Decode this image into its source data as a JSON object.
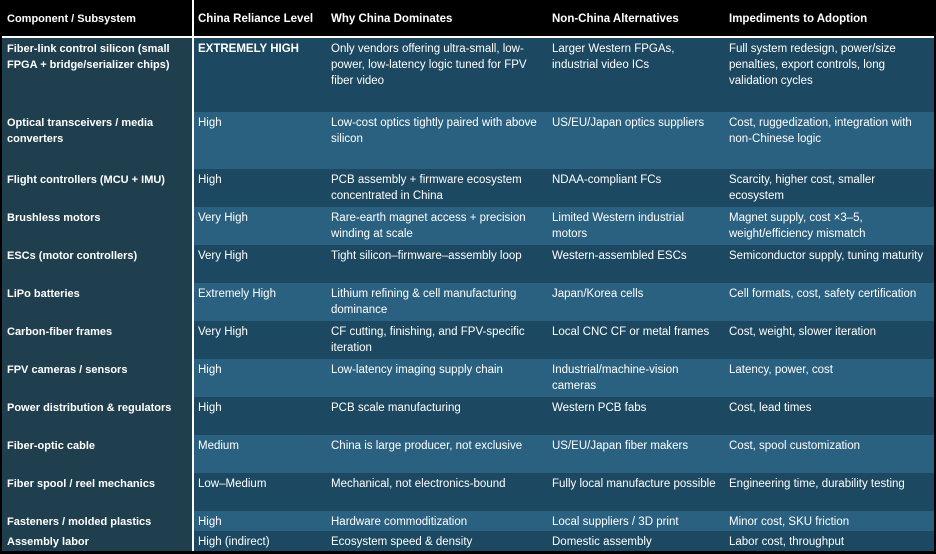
{
  "colors": {
    "header_bg": "#000000",
    "col1_bg": "#1f3f4f",
    "row_dark": "#1c4961",
    "row_light": "#2a6181",
    "divider": "#ffffff",
    "text": "#ffffff"
  },
  "table": {
    "headers": [
      "Component / Subsystem",
      "China Reliance Level",
      "Why China Dominates",
      "Non-China Alternatives",
      "Impediments to Adoption"
    ],
    "rows": [
      {
        "component": "Fiber-link control silicon (small FPGA + bridge/serializer chips)",
        "reliance": "EXTREMELY HIGH",
        "why": "Only vendors offering ultra-small, low-power, low-latency logic tuned for FPV fiber video",
        "alternatives": "Larger Western FPGAs, industrial video ICs",
        "impediments": "Full system redesign, power/size penalties, export controls, long validation cycles"
      },
      {
        "component": "Optical transceivers / media converters",
        "reliance": "High",
        "why": "Low-cost optics tightly paired with above silicon",
        "alternatives": "US/EU/Japan optics suppliers",
        "impediments": "Cost, ruggedization, integration with non-Chinese logic"
      },
      {
        "component": "Flight controllers (MCU + IMU)",
        "reliance": "High",
        "why": "PCB assembly + firmware ecosystem concentrated in China",
        "alternatives": "NDAA-compliant FCs",
        "impediments": "Scarcity, higher cost, smaller ecosystem"
      },
      {
        "component": "Brushless motors",
        "reliance": "Very High",
        "why": "Rare-earth magnet access + precision winding at scale",
        "alternatives": "Limited Western industrial motors",
        "impediments": "Magnet supply, cost ×3–5, weight/efficiency mismatch"
      },
      {
        "component": "ESCs (motor controllers)",
        "reliance": "Very High",
        "why": "Tight silicon–firmware–assembly loop",
        "alternatives": "Western-assembled ESCs",
        "impediments": "Semiconductor supply, tuning maturity"
      },
      {
        "component": "LiPo batteries",
        "reliance": "Extremely High",
        "why": "Lithium refining & cell manufacturing dominance",
        "alternatives": "Japan/Korea cells",
        "impediments": "Cell formats, cost, safety certification"
      },
      {
        "component": "Carbon-fiber frames",
        "reliance": "Very High",
        "why": "CF cutting, finishing, and FPV-specific iteration",
        "alternatives": "Local CNC CF or metal frames",
        "impediments": "Cost, weight, slower iteration"
      },
      {
        "component": "FPV cameras / sensors",
        "reliance": "High",
        "why": "Low-latency imaging supply chain",
        "alternatives": "Industrial/machine-vision cameras",
        "impediments": "Latency, power, cost"
      },
      {
        "component": "Power distribution & regulators",
        "reliance": "High",
        "why": "PCB scale manufacturing",
        "alternatives": "Western PCB fabs",
        "impediments": "Cost, lead times"
      },
      {
        "component": "Fiber-optic cable",
        "reliance": "Medium",
        "why": "China is large producer, not exclusive",
        "alternatives": "US/EU/Japan fiber makers",
        "impediments": "Cost, spool customization"
      },
      {
        "component": "Fiber spool / reel mechanics",
        "reliance": "Low–Medium",
        "why": "Mechanical, not electronics-bound",
        "alternatives": "Fully local manufacture possible",
        "impediments": "Engineering time, durability testing"
      },
      {
        "component": "Fasteners / molded plastics",
        "reliance": "High",
        "why": "Hardware commoditization",
        "alternatives": "Local suppliers / 3D print",
        "impediments": "Minor cost, SKU friction"
      },
      {
        "component": "Assembly labor",
        "reliance": "High (indirect)",
        "why": "Ecosystem speed & density",
        "alternatives": "Domestic assembly",
        "impediments": "Labor cost, throughput"
      }
    ]
  }
}
